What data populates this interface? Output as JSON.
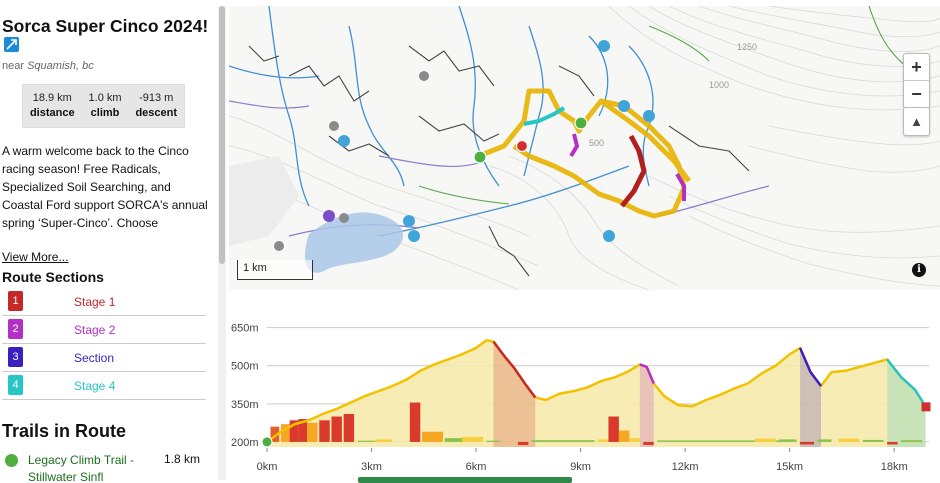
{
  "route": {
    "title": "Sorca Super Cinco 2024!",
    "location_prefix": "near",
    "location": "Squamish, bc",
    "stats": [
      {
        "value": "18.9 km",
        "label": "distance"
      },
      {
        "value": "1.0 km",
        "label": "climb"
      },
      {
        "value": "-913 m",
        "label": "descent"
      }
    ],
    "description": "A warm welcome back to the Cinco racing season! Free Radicals, Specialized Soil Searching, and Coastal Ford support SORCA's annual spring ‘Super-Cinco’. Choose",
    "view_more": "View More..."
  },
  "sections_title": "Route Sections",
  "sections": [
    {
      "num": "1",
      "name": "Stage 1",
      "color": "#c62828"
    },
    {
      "num": "2",
      "name": "Stage 2",
      "color": "#b42fc6"
    },
    {
      "num": "3",
      "name": "Section",
      "color": "#3b1fbf"
    },
    {
      "num": "4",
      "name": "Stage 4",
      "color": "#26c6c6"
    }
  ],
  "trails_title": "Trails in Route",
  "trails": [
    {
      "name": "Legacy Climb Trail - Stillwater Sinfl",
      "distance": "1.8 km"
    }
  ],
  "map": {
    "scale_label": "1 km",
    "contour_labels": [
      "1250",
      "1000",
      "500"
    ],
    "zoom_in": "+",
    "zoom_out": "−",
    "compass": "▲",
    "info": "i"
  },
  "colors": {
    "route_line": "#f2c200",
    "route_fill": "#f7e9a8",
    "stage1": "#c62828",
    "stage2": "#b42fc6",
    "section3": "#3b1fbf",
    "stage4": "#26c6c6"
  },
  "chart_data": {
    "type": "area",
    "y_tick_labels": [
      "650m",
      "500m",
      "350m",
      "200m"
    ],
    "y_ticks": [
      650,
      500,
      350,
      200
    ],
    "x_tick_labels": [
      "0km",
      "3km",
      "6km",
      "9km",
      "12km",
      "15km",
      "18km"
    ],
    "x_ticks": [
      0,
      3,
      6,
      9,
      12,
      15,
      18
    ],
    "xlim": [
      0,
      19
    ],
    "ylim": [
      180,
      680
    ],
    "grid": true,
    "elevation": {
      "x": [
        0,
        0.4,
        0.8,
        1.2,
        1.6,
        2.0,
        2.4,
        2.8,
        3.2,
        3.6,
        4.0,
        4.4,
        4.8,
        5.2,
        5.6,
        6.0,
        6.3,
        6.5,
        6.8,
        7.1,
        7.4,
        7.7,
        8.0,
        8.4,
        8.8,
        9.2,
        9.6,
        10.0,
        10.4,
        10.7,
        10.9,
        11.1,
        11.4,
        11.8,
        12.2,
        12.6,
        13.0,
        13.4,
        13.8,
        14.2,
        14.6,
        15.0,
        15.3,
        15.6,
        15.9,
        16.2,
        16.6,
        17.0,
        17.4,
        17.8,
        18.2,
        18.6,
        18.9
      ],
      "y": [
        200,
        240,
        270,
        285,
        310,
        330,
        355,
        380,
        400,
        420,
        445,
        480,
        505,
        525,
        545,
        570,
        600,
        595,
        540,
        490,
        430,
        375,
        365,
        390,
        400,
        415,
        440,
        455,
        480,
        505,
        495,
        430,
        380,
        345,
        340,
        365,
        385,
        410,
        430,
        470,
        500,
        545,
        570,
        475,
        420,
        475,
        480,
        495,
        510,
        525,
        455,
        405,
        340
      ]
    },
    "segments": [
      {
        "name": "Stage 1",
        "x_start": 6.5,
        "x_end": 7.7,
        "color": "#c62828"
      },
      {
        "name": "Stage 2",
        "x_start": 10.7,
        "x_end": 11.1,
        "color": "#b42fc6"
      },
      {
        "name": "Section",
        "x_start": 15.3,
        "x_end": 15.9,
        "color": "#3b1fbf"
      },
      {
        "name": "Stage 4",
        "x_start": 17.8,
        "x_end": 18.9,
        "color": "#26c6c6"
      }
    ],
    "gradient_bars": [
      {
        "x": 0.1,
        "w": 0.25,
        "v": 260,
        "c": "#e65c2b"
      },
      {
        "x": 0.4,
        "w": 0.25,
        "v": 270,
        "c": "#f5a623"
      },
      {
        "x": 0.65,
        "w": 0.25,
        "v": 285,
        "c": "#d93a2b"
      },
      {
        "x": 0.9,
        "w": 0.25,
        "v": 290,
        "c": "#d93a2b"
      },
      {
        "x": 1.15,
        "w": 0.3,
        "v": 275,
        "c": "#f5a623"
      },
      {
        "x": 1.5,
        "w": 0.3,
        "v": 285,
        "c": "#d93a2b"
      },
      {
        "x": 1.85,
        "w": 0.3,
        "v": 300,
        "c": "#d93a2b"
      },
      {
        "x": 2.2,
        "w": 0.3,
        "v": 310,
        "c": "#d93a2b"
      },
      {
        "x": 2.6,
        "w": 0.5,
        "v": 205,
        "c": "#8bc34a"
      },
      {
        "x": 3.1,
        "w": 0.5,
        "v": 210,
        "c": "#f5d142"
      },
      {
        "x": 4.1,
        "w": 0.3,
        "v": 355,
        "c": "#d93a2b"
      },
      {
        "x": 4.45,
        "w": 0.6,
        "v": 240,
        "c": "#f5a623"
      },
      {
        "x": 5.1,
        "w": 0.6,
        "v": 215,
        "c": "#8bc34a"
      },
      {
        "x": 5.6,
        "w": 0.6,
        "v": 220,
        "c": "#f5d142"
      },
      {
        "x": 6.3,
        "w": 0.4,
        "v": 205,
        "c": "#8bc34a"
      },
      {
        "x": 7.2,
        "w": 0.3,
        "v": 188,
        "c": "#d93a2b"
      },
      {
        "x": 7.6,
        "w": 1.8,
        "v": 207,
        "c": "#8bc34a"
      },
      {
        "x": 9.5,
        "w": 0.3,
        "v": 210,
        "c": "#f5d142"
      },
      {
        "x": 9.8,
        "w": 0.3,
        "v": 300,
        "c": "#d93a2b"
      },
      {
        "x": 10.1,
        "w": 0.3,
        "v": 245,
        "c": "#f5a623"
      },
      {
        "x": 10.4,
        "w": 0.3,
        "v": 215,
        "c": "#f5d142"
      },
      {
        "x": 10.8,
        "w": 0.3,
        "v": 188,
        "c": "#d93a2b"
      },
      {
        "x": 11.2,
        "w": 3.6,
        "v": 206,
        "c": "#8bc34a"
      },
      {
        "x": 14.0,
        "w": 0.6,
        "v": 213,
        "c": "#f5d142"
      },
      {
        "x": 14.7,
        "w": 0.5,
        "v": 210,
        "c": "#8bc34a"
      },
      {
        "x": 15.3,
        "w": 0.4,
        "v": 190,
        "c": "#d93a2b"
      },
      {
        "x": 15.8,
        "w": 0.4,
        "v": 210,
        "c": "#8bc34a"
      },
      {
        "x": 16.4,
        "w": 0.6,
        "v": 213,
        "c": "#f5d142"
      },
      {
        "x": 17.1,
        "w": 0.6,
        "v": 208,
        "c": "#8bc34a"
      },
      {
        "x": 17.8,
        "w": 0.3,
        "v": 190,
        "c": "#d93a2b"
      },
      {
        "x": 18.2,
        "w": 0.6,
        "v": 207,
        "c": "#8bc34a"
      }
    ]
  }
}
